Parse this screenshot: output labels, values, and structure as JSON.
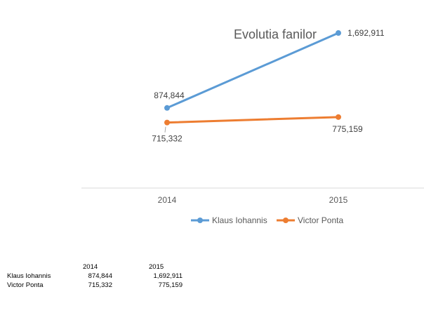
{
  "chart_data": {
    "type": "line",
    "title": "Evolutia fanilor",
    "categories": [
      "2014",
      "2015"
    ],
    "series": [
      {
        "name": "Klaus Iohannis",
        "values": [
          874844,
          1692911
        ],
        "labels": [
          "874,844",
          "1,692,911"
        ],
        "color": "#5b9bd5"
      },
      {
        "name": "Victor Ponta",
        "values": [
          715332,
          775159
        ],
        "labels": [
          "715,332",
          "775,159"
        ],
        "color": "#ed7d31"
      }
    ],
    "xlabel": "",
    "ylabel": "",
    "ylim": [
      0,
      1900000
    ],
    "grid": false,
    "legend": "bottom",
    "axis_color": "#d9d9d9"
  },
  "table": {
    "headers": [
      "",
      "2014",
      "2015"
    ],
    "rows": [
      {
        "label": "Klaus Iohannis",
        "values": [
          "874,844",
          "1,692,911"
        ]
      },
      {
        "label": "Victor Ponta",
        "values": [
          "715,332",
          "775,159"
        ]
      }
    ]
  }
}
